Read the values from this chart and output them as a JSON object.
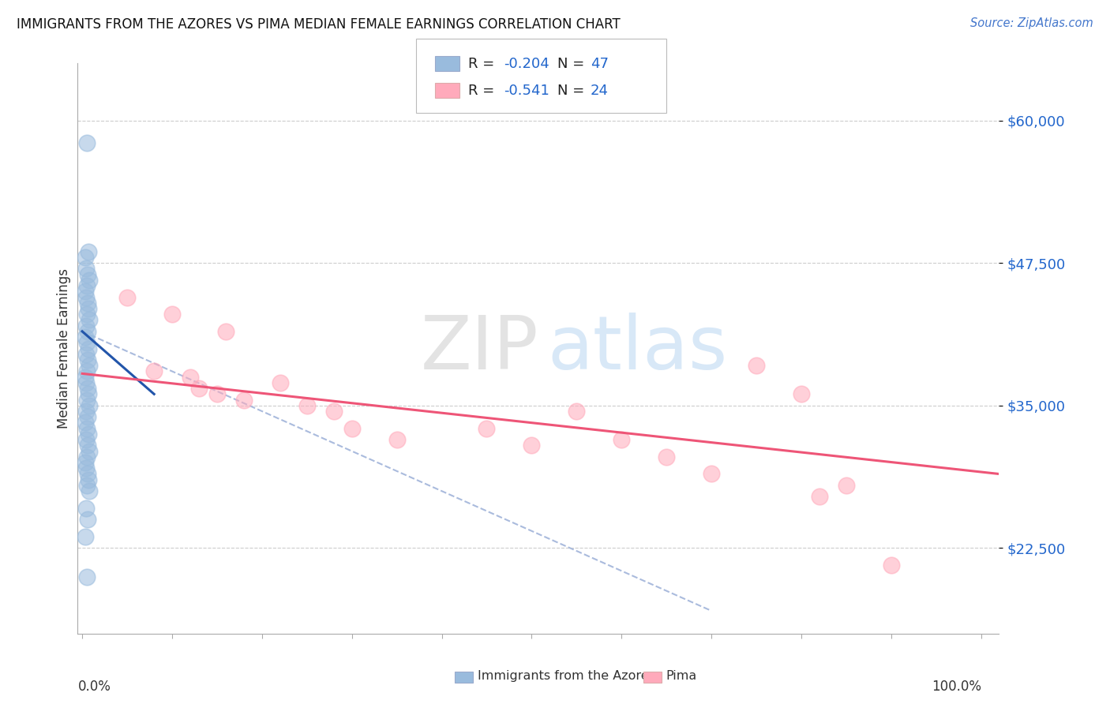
{
  "title": "IMMIGRANTS FROM THE AZORES VS PIMA MEDIAN FEMALE EARNINGS CORRELATION CHART",
  "source": "Source: ZipAtlas.com",
  "ylabel": "Median Female Earnings",
  "r1": -0.204,
  "n1": 47,
  "r2": -0.541,
  "n2": 24,
  "legend_label1": "Immigrants from the Azores",
  "legend_label2": "Pima",
  "yticks": [
    22500,
    35000,
    47500,
    60000
  ],
  "ytick_labels": [
    "$22,500",
    "$35,000",
    "$47,500",
    "$60,000"
  ],
  "ymin": 15000,
  "ymax": 65000,
  "xmin": -0.005,
  "xmax": 1.02,
  "color_blue": "#99bbdd",
  "color_pink": "#ffaabb",
  "color_blue_line": "#2255aa",
  "color_pink_line": "#ee5577",
  "color_dashed_line": "#aabbdd",
  "background_color": "#ffffff",
  "watermark_zip": "ZIP",
  "watermark_atlas": "atlas",
  "blue_scatter_x": [
    0.005,
    0.003,
    0.007,
    0.004,
    0.006,
    0.008,
    0.005,
    0.003,
    0.004,
    0.006,
    0.007,
    0.005,
    0.008,
    0.004,
    0.006,
    0.003,
    0.005,
    0.007,
    0.004,
    0.006,
    0.008,
    0.005,
    0.003,
    0.004,
    0.006,
    0.007,
    0.005,
    0.008,
    0.004,
    0.006,
    0.003,
    0.005,
    0.007,
    0.004,
    0.006,
    0.008,
    0.005,
    0.003,
    0.004,
    0.006,
    0.007,
    0.005,
    0.008,
    0.004,
    0.006,
    0.003,
    0.005
  ],
  "blue_scatter_y": [
    58000,
    48000,
    48500,
    47000,
    46500,
    46000,
    45500,
    45000,
    44500,
    44000,
    43500,
    43000,
    42500,
    42000,
    41500,
    41000,
    40500,
    40000,
    39500,
    39000,
    38500,
    38000,
    37500,
    37000,
    36500,
    36000,
    35500,
    35000,
    34500,
    34000,
    33500,
    33000,
    32500,
    32000,
    31500,
    31000,
    30500,
    30000,
    29500,
    29000,
    28500,
    28000,
    27500,
    26000,
    25000,
    23500,
    20000
  ],
  "pink_scatter_x": [
    0.05,
    0.08,
    0.1,
    0.12,
    0.13,
    0.15,
    0.16,
    0.18,
    0.22,
    0.25,
    0.28,
    0.3,
    0.35,
    0.45,
    0.5,
    0.55,
    0.6,
    0.65,
    0.7,
    0.75,
    0.8,
    0.82,
    0.85,
    0.9
  ],
  "pink_scatter_y": [
    44500,
    38000,
    43000,
    37500,
    36500,
    36000,
    41500,
    35500,
    37000,
    35000,
    34500,
    33000,
    32000,
    33000,
    31500,
    34500,
    32000,
    30500,
    29000,
    38500,
    36000,
    27000,
    28000,
    21000
  ],
  "blue_line_x": [
    0.0,
    0.08
  ],
  "blue_line_y": [
    41500,
    36000
  ],
  "pink_line_x": [
    0.0,
    1.02
  ],
  "pink_line_y": [
    37800,
    29000
  ],
  "dash_line_x": [
    0.0,
    0.7
  ],
  "dash_line_y": [
    41500,
    17000
  ]
}
